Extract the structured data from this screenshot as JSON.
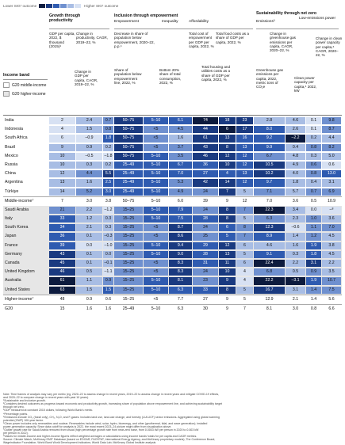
{
  "legend": {
    "lower": "Lower SIG¹ outcome",
    "higher": "Higher SIG¹ outcome",
    "colors": [
      "#0d1b3e",
      "#1a3a80",
      "#2f5bb0",
      "#6f90cf",
      "#a8bde4",
      "#d7e1f3"
    ]
  },
  "groups": {
    "growth": "Growth through productivity",
    "inclusion": "Inclusion through empowerment",
    "sustainability": "Sustainability through net zero"
  },
  "subgroups": {
    "empowerment": "Empowerment",
    "inequality": "Inequality",
    "affordability": "Affordability",
    "emissions": "Emissions³",
    "lowemissions": "Low-emissions power"
  },
  "column_headers": [
    "GDP per capita, 2022, $ thousand (2015)⁴",
    "Change in productivity, CAGR, 2019–22, %",
    "Decrease in share of population below empowerment, 2020–22, p.p.⁴",
    "Total cost of empowerment per GDP per capita, 2022, %",
    "Total food costs as a share of GDP per capita, 2022, %",
    "Change in greenhouse gas emissions per capita, CAGR, 2020–22, %",
    "Change in clean power capacity per capita,⁶ CAGR, 2020–22, %"
  ],
  "column_headers_low": [
    "Change in GDP per capita, CAGR, 2019–22, %",
    "Share of population below empowerment line, 2022, %",
    "Bottom 20% share of total consumption, 2022, %",
    "Total housing and utilities costs as a share of GDP per capita, 2022, %",
    "Greenhouse gas emissions per capita, 2022, metric tons of CO₂e",
    "Clean power capacity per capita,⁶ 2022, kW"
  ],
  "income_band": {
    "title": "Income band",
    "middle": "G20 middle-income",
    "higher": "G20 higher-income"
  },
  "rows": [
    {
      "label": "India",
      "v": [
        "2",
        "2.4",
        "0.7",
        "50–75",
        "5–10",
        "6.1",
        "74",
        "18",
        "23",
        "2.8",
        "4.6",
        "0.1",
        "9.8"
      ],
      "s": [
        5,
        4,
        3,
        1,
        2,
        2,
        0,
        1,
        1,
        4,
        4,
        5,
        3
      ]
    },
    {
      "label": "Indonesia",
      "v": [
        "4",
        "1.5",
        "0.8",
        "50–75",
        "<5",
        "4.5",
        "44",
        "6",
        "17",
        "8.0",
        "2.6",
        "0.1",
        "8.7"
      ],
      "s": [
        5,
        4,
        3,
        1,
        3,
        3,
        1,
        0,
        1,
        2,
        4,
        5,
        3
      ]
    },
    {
      "label": "South Africa",
      "v": [
        "6",
        "–0.9",
        "1.8",
        "50–75",
        "<5",
        "1.6",
        "61",
        "13",
        "16",
        "9.2",
        "–2.2",
        "0.2",
        "4.4"
      ],
      "s": [
        5,
        5,
        2,
        1,
        3,
        4,
        1,
        1,
        2,
        2,
        0,
        4,
        4
      ]
    },
    {
      "label": "Brazil",
      "v": [
        "9",
        "0.9",
        "0.2",
        "50–75",
        "<5",
        "3.7",
        "43",
        "8",
        "13",
        "9.9",
        "0.4",
        "0.8",
        "8.2"
      ],
      "s": [
        4,
        4,
        4,
        1,
        3,
        3,
        1,
        1,
        2,
        2,
        4,
        3,
        3
      ]
    },
    {
      "label": "Mexico",
      "v": [
        "10",
        "–0.5",
        "–1.8",
        "50–75",
        "5–10",
        "3.5",
        "46",
        "12",
        "12",
        "6.7",
        "4.8",
        "0.3",
        "5.0"
      ],
      "s": [
        4,
        5,
        5,
        1,
        2,
        3,
        1,
        1,
        2,
        3,
        4,
        4,
        4
      ]
    },
    {
      "label": "Russia",
      "v": [
        "10",
        "0.3",
        "0.2",
        "25–49",
        "5–10",
        "6.7",
        "36",
        "10",
        "12",
        "10.5",
        "4.9",
        "0.6",
        "0.6"
      ],
      "s": [
        4,
        4,
        4,
        2,
        2,
        2,
        2,
        1,
        2,
        1,
        4,
        3,
        5
      ]
    },
    {
      "label": "China",
      "v": [
        "12",
        "4.4",
        "5.5",
        "25–49",
        "5–10",
        "7.0",
        "27",
        "4",
        "13",
        "10.2",
        "4.0",
        "0.8",
        "13.0"
      ],
      "s": [
        4,
        3,
        1,
        2,
        2,
        2,
        2,
        2,
        2,
        1,
        4,
        3,
        2
      ]
    },
    {
      "label": "Argentina",
      "v": [
        "13",
        "1.6",
        "2.5",
        "25–49",
        "5–10",
        "5.3",
        "42",
        "14",
        "12",
        "9.7",
        "1.8",
        "0.4",
        "3.1"
      ],
      "s": [
        4,
        4,
        2,
        2,
        2,
        3,
        1,
        1,
        2,
        2,
        4,
        4,
        4
      ]
    },
    {
      "label": "Türkiye",
      "v": [
        "14",
        "5.2",
        "3.0",
        "25–49",
        "5–10",
        "4.9",
        "24",
        "7",
        "5",
        "7.1",
        "5.7",
        "0.7",
        "6.9"
      ],
      "s": [
        4,
        3,
        2,
        2,
        2,
        3,
        3,
        1,
        4,
        3,
        4,
        3,
        3
      ]
    },
    {
      "label": "Middle-income⁷",
      "v": [
        "7",
        "3.0",
        "3.8",
        "50–75",
        "5–10",
        "6.0",
        "39",
        "9",
        "12",
        "7.0",
        "3.6",
        "0.5",
        "10.9"
      ],
      "s": [
        -1,
        -1,
        -1,
        -1,
        -1,
        -1,
        -1,
        -1,
        -1,
        -1,
        -1,
        -1,
        -1
      ],
      "agg": true
    },
    {
      "label": "Saudi Arabia",
      "v": [
        "21",
        "2.2",
        "–1.2",
        "15–25",
        "5–10",
        "7.9",
        "24",
        "8",
        "7",
        "22.3",
        "3.4",
        "0.0",
        "–⁸"
      ],
      "s": [
        3,
        4,
        5,
        3,
        2,
        2,
        3,
        1,
        3,
        0,
        4,
        5,
        5
      ]
    },
    {
      "label": "Italy",
      "v": [
        "33",
        "1.2",
        "0.3",
        "15–25",
        "5–10",
        "7.5",
        "28",
        "8",
        "5",
        "6.3",
        "2.3",
        "1.0",
        "3.6"
      ],
      "s": [
        2,
        4,
        4,
        3,
        2,
        2,
        2,
        1,
        4,
        3,
        4,
        3,
        4
      ]
    },
    {
      "label": "South Korea",
      "v": [
        "34",
        "2.1",
        "0.3",
        "15–25",
        "<5",
        "8.7",
        "24",
        "6",
        "8",
        "12.3",
        "–0.6",
        "1.1",
        "7.0"
      ],
      "s": [
        2,
        4,
        4,
        3,
        3,
        1,
        3,
        2,
        3,
        1,
        5,
        3,
        3
      ]
    },
    {
      "label": "Japan",
      "v": [
        "36",
        "0.1",
        "–0.3",
        "15–25",
        "<5",
        "8.6",
        "25",
        "5",
        "7",
        "8.9",
        "1.4",
        "1.2",
        "4.5"
      ],
      "s": [
        2,
        4,
        4,
        3,
        3,
        1,
        3,
        2,
        3,
        2,
        4,
        3,
        4
      ]
    },
    {
      "label": "France",
      "v": [
        "39",
        "0.0",
        "–1.0",
        "15–25",
        "5–10",
        "9.4",
        "29",
        "12",
        "6",
        "4.6",
        "1.6",
        "1.9",
        "3.8"
      ],
      "s": [
        2,
        5,
        5,
        3,
        2,
        1,
        2,
        1,
        4,
        4,
        4,
        2,
        4
      ]
    },
    {
      "label": "Germany",
      "v": [
        "43",
        "0.1",
        "0.0",
        "15–25",
        "5–10",
        "9.0",
        "28",
        "13",
        "5",
        "9.1",
        "0.3",
        "1.8",
        "4.5"
      ],
      "s": [
        1,
        4,
        4,
        3,
        2,
        1,
        2,
        1,
        4,
        2,
        4,
        2,
        4
      ]
    },
    {
      "label": "Canada",
      "v": [
        "45",
        "0.1",
        "–0.1",
        "15–25",
        "<5",
        "8.3",
        "31",
        "11",
        "6",
        "22.4",
        "2.2",
        "3.1",
        "2.2"
      ],
      "s": [
        1,
        4,
        4,
        3,
        3,
        1,
        2,
        1,
        4,
        0,
        4,
        1,
        4
      ]
    },
    {
      "label": "United Kingdom",
      "v": [
        "46",
        "0.5",
        "–1.1",
        "15–25",
        "<5",
        "8.3",
        "24",
        "10",
        "4",
        "6.8",
        "0.5",
        "0.9",
        "3.5"
      ],
      "s": [
        1,
        4,
        5,
        3,
        3,
        1,
        3,
        1,
        5,
        3,
        4,
        3,
        4
      ]
    },
    {
      "label": "Australia",
      "v": [
        "61",
        "1.1",
        "0.9",
        "15–25",
        "5–10",
        "8.1",
        "23",
        "9",
        "4",
        "22.2",
        "–3.1",
        "1.9",
        "10.7"
      ],
      "s": [
        0,
        4,
        3,
        3,
        2,
        1,
        3,
        1,
        5,
        0,
        0,
        2,
        3
      ]
    },
    {
      "label": "United States",
      "v": [
        "63",
        "1.5",
        "1.5",
        "15–25",
        "5–10",
        "6.3",
        "33",
        "8",
        "5",
        "16.7",
        "3.1",
        "1.4",
        "7.5"
      ],
      "s": [
        0,
        4,
        2,
        3,
        2,
        2,
        2,
        1,
        4,
        1,
        4,
        3,
        3
      ]
    },
    {
      "label": "Higher-income⁷",
      "v": [
        "48",
        "0.9",
        "0.6",
        "15–25",
        "<5",
        "7.7",
        "27",
        "9",
        "5",
        "12.9",
        "2.1",
        "1.4",
        "5.6"
      ],
      "s": [
        -1,
        -1,
        -1,
        -1,
        -1,
        -1,
        -1,
        -1,
        -1,
        -1,
        -1,
        -1,
        -1
      ],
      "agg": true
    },
    {
      "label": "G20",
      "v": [
        "15",
        "1.6",
        "1.6",
        "25–49",
        "5–10",
        "6.3",
        "30",
        "9",
        "7",
        "8.1",
        "3.0",
        "0.8",
        "6.6"
      ],
      "s": [
        -1,
        -1,
        -1,
        -1,
        -1,
        -1,
        -1,
        -1,
        -1,
        -1,
        -1,
        -1,
        -1
      ],
      "agg": true
    }
  ],
  "notes": [
    "Note: Time frames of analysis may vary per metric (eg, 2020–22 to assess change in recent years, 2019–22 to assess change in recent years and mitigate COVID-19 effects,",
    "and 2020–22 to compare change in recent years with past 10 years).",
    "¹Sustainable and inclusive growth.",
    "²Considers desired outcomes as progress toward economic and productivity growth, increasing share of population above empowerment line, and achieving sustainability target",
    "through net zero.",
    "³GDP measured at constant 2015 dollars, following World Bank's metric.",
    "⁴Percentage points.",
    "⁵Emissions include CO₂ (fossil only), CH₄, N₂O, and F-gases. Includes land use, land-use change, and forestry (LULUCF) sector emissions. Aggregated using global warming",
    "potential (GWP) 100-year factor.",
    "⁶Clean power includes only renewables and nuclear. Renewables include wind, solar, hydro, bioenergy, and other (geothermal, tidal, and wave generation); installed",
    "power-generation capacity. Since data cutoff for analysis is 2022, the most recent 2023–24 picture might differ from visualization above.",
    "⁷Outlier growth rate for Saudi Arabia removed from visual (high percentage growth rate from near-zero base, from 0.0003 kW per person in 2020 to 0.003 kW",
    "per person in 2022).",
    "⁸Values for middle-income and higher-income figures reflect weighted averages or calculations using income bands' totals for per capita and CAGR metrics.",
    "Source: Climate Watch; McKinsey EMIT Database (based on EDGAR, FAOSTAT, International Energy Agency, and McKinsey proprietary models); The Conference Board;",
    "Wageindicator Foundation; World Bank World Development Indicators; World Data Lab; McKinsey Global Institute analysis"
  ]
}
